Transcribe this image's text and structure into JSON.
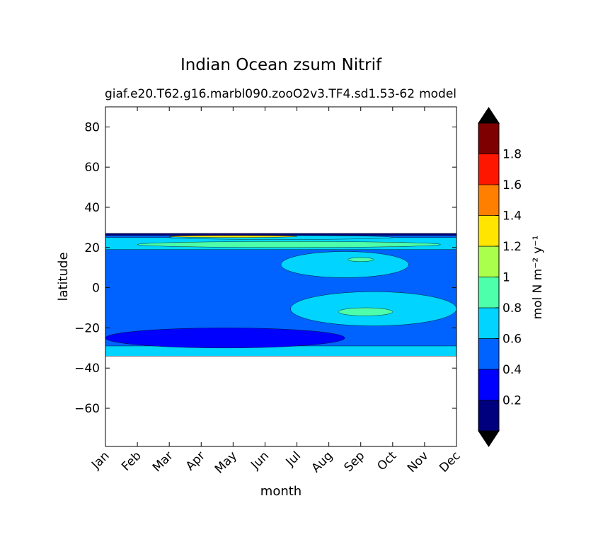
{
  "chart_data": {
    "type": "heatmap",
    "title": "Indian Ocean zsum Nitrif",
    "subtitle_left": "giaf.e20.T62.g16.marbl090.zooO2v3.TF4.sd1.53-62",
    "subtitle_right": "model",
    "xlabel": "month",
    "ylabel": "latitude",
    "x_categories": [
      "Jan",
      "Feb",
      "Mar",
      "Apr",
      "May",
      "Jun",
      "Jul",
      "Aug",
      "Sep",
      "Oct",
      "Nov",
      "Dec"
    ],
    "xlim": [
      0,
      11
    ],
    "ylim": [
      -79,
      90
    ],
    "y_ticks": [
      -60,
      -40,
      -20,
      0,
      20,
      40,
      60,
      80
    ],
    "y_tick_labels": [
      "−60",
      "−40",
      "−20",
      "0",
      "20",
      "40",
      "60",
      "80"
    ],
    "colorbar": {
      "label": "mol N m⁻² y⁻¹",
      "levels": [
        0,
        0.2,
        0.4,
        0.6,
        0.8,
        1,
        1.2,
        1.4,
        1.6,
        1.8,
        2.0
      ],
      "tick_values": [
        0.2,
        0.4,
        0.6,
        0.8,
        1,
        1.2,
        1.4,
        1.6,
        1.8
      ],
      "tick_labels": [
        "0.2",
        "0.4",
        "0.6",
        "0.8",
        "1",
        "1.2",
        "1.4",
        "1.6",
        "1.8"
      ],
      "colors": [
        "#00007f",
        "#0000ff",
        "#0063ff",
        "#00d4ff",
        "#4dffaa",
        "#aaff4d",
        "#ffe500",
        "#ff7f00",
        "#ff1600",
        "#7f0000"
      ],
      "extend": "both",
      "under_color": "#000000",
      "over_color": "#000000"
    },
    "data_extent_lat": [
      -34,
      27
    ],
    "regions": [
      {
        "level": 2,
        "month": [
          0,
          11
        ],
        "lat": [
          -34,
          27
        ]
      },
      {
        "level": 3,
        "month": [
          0,
          11
        ],
        "lat": [
          19,
          25
        ]
      },
      {
        "level": 3,
        "month": [
          0,
          11
        ],
        "lat": [
          -34,
          -29
        ]
      },
      {
        "level": 3,
        "month": [
          5.8,
          11
        ],
        "lat": [
          -19,
          -2
        ]
      },
      {
        "level": 3,
        "month": [
          5.5,
          9.5
        ],
        "lat": [
          5,
          18
        ]
      },
      {
        "level": 4,
        "month": [
          7.3,
          9.0
        ],
        "lat": [
          -14,
          -10
        ]
      },
      {
        "level": 4,
        "month": [
          7.6,
          8.4
        ],
        "lat": [
          13,
          15
        ]
      },
      {
        "level": 4,
        "month": [
          1.0,
          10.5
        ],
        "lat": [
          20,
          23
        ]
      },
      {
        "level": 1,
        "month": [
          0,
          7.5
        ],
        "lat": [
          -30,
          -20
        ]
      },
      {
        "level": 3,
        "month": [
          2,
          9
        ],
        "lat": [
          24,
          26
        ]
      },
      {
        "level": 6,
        "month": [
          2,
          6
        ],
        "lat": [
          25,
          26
        ]
      },
      {
        "level": 0,
        "month": [
          0,
          11
        ],
        "lat": [
          26,
          27
        ]
      }
    ]
  }
}
